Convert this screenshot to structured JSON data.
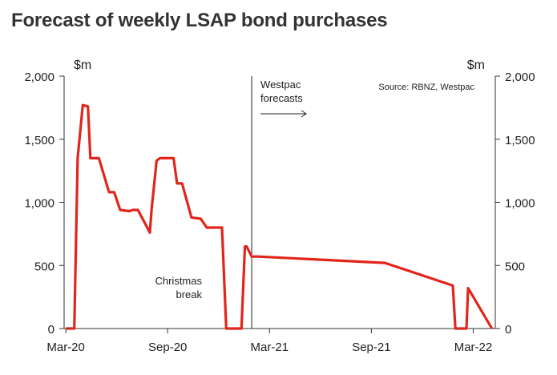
{
  "title": "Forecast of weekly LSAP bond purchases",
  "chart_data": {
    "type": "line",
    "title": "Forecast of weekly LSAP bond purchases",
    "left_unit": "$m",
    "right_unit": "$m",
    "source": "Source: RBNZ, Westpac",
    "ylim": [
      0,
      2000
    ],
    "yticks": [
      0,
      500,
      1000,
      1500,
      2000
    ],
    "ytick_labels": [
      "0",
      "500",
      "1,000",
      "1,500",
      "2,000"
    ],
    "xlim": [
      -0.1,
      25.3
    ],
    "xticks": [
      0,
      6,
      12,
      18,
      24
    ],
    "xtick_labels": [
      "Mar-20",
      "Sep-20",
      "Mar-21",
      "Sep-21",
      "Mar-22"
    ],
    "x_unit": "months since Mar-20",
    "forecast_start_x": 10.95,
    "annotations": {
      "westpac_line1": "Westpac",
      "westpac_line2": "forecasts",
      "christmas_line1": "Christmas",
      "christmas_line2": "break"
    },
    "series": [
      {
        "name": "Weekly LSAP bond purchases",
        "color": "#e1251b",
        "x": [
          0.0,
          0.5,
          0.7,
          1.0,
          1.3,
          1.45,
          1.7,
          1.95,
          2.55,
          2.85,
          3.2,
          3.75,
          3.95,
          4.25,
          4.95,
          5.05,
          5.35,
          5.55,
          5.7,
          6.35,
          6.55,
          6.85,
          7.4,
          7.95,
          8.3,
          9.2,
          9.45,
          9.55,
          10.35,
          10.55,
          10.65,
          10.95,
          11.35,
          18.8,
          22.8,
          22.95,
          23.3,
          23.6,
          23.7,
          25.1
        ],
        "y": [
          0,
          0,
          1350,
          1770,
          1760,
          1350,
          1350,
          1350,
          1080,
          1080,
          940,
          930,
          940,
          940,
          760,
          940,
          1330,
          1350,
          1350,
          1350,
          1150,
          1150,
          880,
          870,
          800,
          800,
          0,
          0,
          0,
          650,
          650,
          570,
          570,
          520,
          340,
          0,
          0,
          0,
          320,
          0
        ]
      }
    ]
  }
}
